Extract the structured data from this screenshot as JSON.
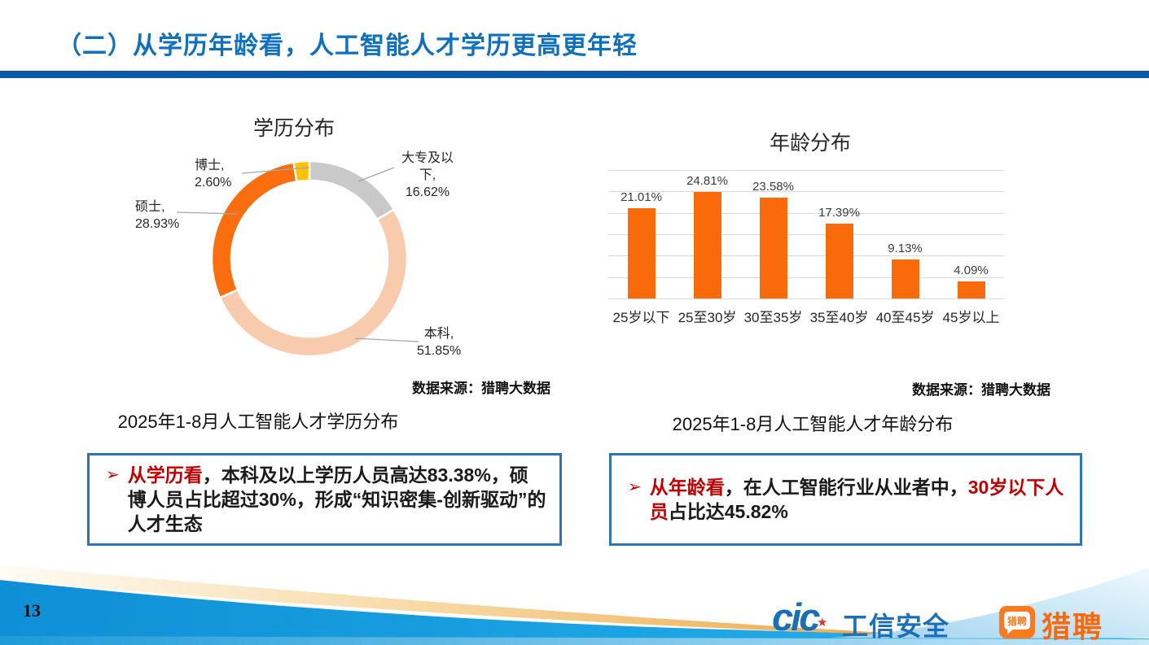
{
  "slide": {
    "title": "（二）从学历年龄看，人工智能人才学历更高更年轻",
    "page_number": "13"
  },
  "colors": {
    "title_blue": "#1070BE",
    "divider_blue": "#0A5AA5",
    "box_border_blue": "#2E75B6",
    "highlight_red": "#C00000",
    "bar_orange": "#F96B0A",
    "donut_gray": "#C9C9C9",
    "donut_peach": "#F8CBAD",
    "donut_orange": "#FA6E0F",
    "donut_yellow": "#FFC000",
    "footer_blue": "#0F8FD6",
    "footer_orange": "#EFA33F"
  },
  "charts": {
    "education": {
      "source": "数据来源：猎聘大数据",
      "caption": "2025年1-8月人工智能人才学历分布"
    },
    "age": {
      "source": "数据来源：猎聘大数据",
      "caption": "2025年1-8月人工智能人才年龄分布"
    }
  },
  "chart_data": [
    {
      "type": "pie",
      "subtype": "donut",
      "title": "学历分布",
      "labels": [
        "大专及以下",
        "本科",
        "硕士",
        "博士"
      ],
      "values": [
        16.62,
        51.85,
        28.93,
        2.6
      ],
      "colors": [
        "#C9C9C9",
        "#F8CBAD",
        "#FA6E0F",
        "#FFC000"
      ],
      "start_angle_deg": 0,
      "direction": "clockwise",
      "label_format": "{name},\n{value}%",
      "legend": "none"
    },
    {
      "type": "bar",
      "title": "年龄分布",
      "categories": [
        "25岁以下",
        "25至30岁",
        "30至35岁",
        "35至40岁",
        "40至45岁",
        "45岁以上"
      ],
      "values": [
        21.01,
        24.81,
        23.58,
        17.39,
        9.13,
        4.09
      ],
      "bar_color": "#F96B0A",
      "ylim": [
        0,
        30
      ],
      "gridline_step": 5,
      "grid": true,
      "data_labels": true,
      "ylabel": "",
      "xlabel": ""
    }
  ],
  "notes": {
    "left": {
      "bullet": "➢",
      "segments": [
        {
          "text": "从学历看",
          "red": true
        },
        {
          "text": "，本科及以上学历人员高达83.38%，硕博人员占比超过30%，形成“知识密集-创新驱动”的人才生态",
          "red": false
        }
      ]
    },
    "right": {
      "bullet": "➢",
      "segments": [
        {
          "text": "从年龄看",
          "red": true
        },
        {
          "text": "，在人工智能行业从业者中，",
          "red": false
        },
        {
          "text": "30岁以下人员",
          "red": true
        },
        {
          "text": "占比达45.82%",
          "red": false
        }
      ]
    }
  },
  "footer": {
    "cic_mark": "cic",
    "cic_star": "★",
    "cic_brand": "工信安全",
    "liepin_badge": "猎聘",
    "liepin_brand": "猎聘"
  }
}
